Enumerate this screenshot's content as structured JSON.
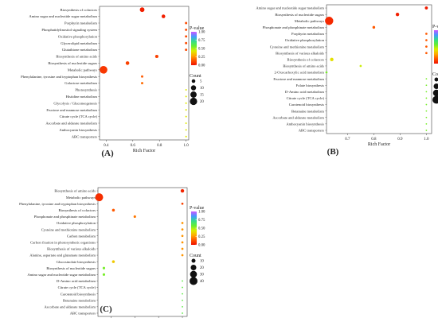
{
  "legend": {
    "pvalue_title": "P-value",
    "count_title": "Count",
    "colors": [
      "#cc55ff",
      "#4499ff",
      "#33dd88",
      "#66ee33",
      "#ddee00",
      "#ffaa00",
      "#ff5500",
      "#ee1100"
    ]
  },
  "chart_data": [
    {
      "type": "scatter",
      "panel_label": "(A)",
      "xlabel": "Rich Factor",
      "ylabel": "",
      "xlim": [
        0.35,
        1.02
      ],
      "xticks": [
        0.4,
        0.6,
        0.8,
        1.0
      ],
      "xtick_labels": [
        "0.4",
        "0.6",
        "0.8",
        "1.0"
      ],
      "pvalue_ticks": [
        1.0,
        0.75,
        0.5,
        0.25,
        0.0
      ],
      "pvalue_tick_labels": [
        "1.00",
        "0.75",
        "0.50",
        "0.25",
        "0.00"
      ],
      "count_legend": [
        5,
        10,
        15,
        20
      ],
      "grid": false,
      "categories": [
        "Biosynthesis of cofactors",
        "Amino sugar and nucleotide sugar metabolism",
        "Porphyrin metabolism",
        "Phosphatidylinositol signaling system",
        "Oxidative phosphorylation",
        "Glycerolipid metabolism",
        "Glutathione metabolism",
        "Biosynthesis of amino acids",
        "Biosynthesis of nucleotide sugars",
        "Metabolic pathways",
        "Phenylalanine, tyrosine and tryptophan biosynthesis",
        "Galactose metabolism",
        "Photosynthesis",
        "Histidine metabolism",
        "Glycolysis / Gluconeogenesis",
        "Fructose and mannose metabolism",
        "Citrate cycle (TCA cycle)",
        "Ascorbate and aldarate metabolism",
        "Anthocyanin biosynthesis",
        "ABC transporters"
      ],
      "rich_factor": [
        0.67,
        0.83,
        1.0,
        1.0,
        1.0,
        1.0,
        1.0,
        0.78,
        0.56,
        0.38,
        0.67,
        0.67,
        1.0,
        1.0,
        1.0,
        1.0,
        1.0,
        1.0,
        1.0,
        1.0
      ],
      "pvalue": [
        0.03,
        0.03,
        0.12,
        0.12,
        0.12,
        0.12,
        0.12,
        0.1,
        0.1,
        0.08,
        0.15,
        0.18,
        0.42,
        0.42,
        0.42,
        0.42,
        0.42,
        0.42,
        0.42,
        0.42
      ],
      "count": [
        8,
        5,
        2,
        2,
        2,
        2,
        2,
        4,
        5,
        22,
        2,
        2,
        1,
        1,
        1,
        1,
        1,
        1,
        1,
        1
      ]
    },
    {
      "type": "scatter",
      "panel_label": "(B)",
      "xlabel": "Rich Factor",
      "ylabel": "",
      "xlim": [
        0.62,
        1.02
      ],
      "xticks": [
        0.7,
        0.8,
        0.9,
        1.0
      ],
      "xtick_labels": [
        "0.7",
        "0.8",
        "0.9",
        "1.0"
      ],
      "pvalue_ticks": [
        1.0,
        0.75,
        0.5,
        0.25,
        0.0
      ],
      "pvalue_tick_labels": [
        "1.00",
        "0.75",
        "0.50",
        "0.25",
        "0.00"
      ],
      "count_legend": [
        10,
        20,
        30,
        40
      ],
      "grid": false,
      "categories": [
        "Amino sugar and nucleotide sugar metabolism",
        "Biosynthesis of nucleotide sugars",
        "Metabolic pathways",
        "Phosphonate and phosphinate metabolism",
        "Porphyrin metabolism",
        "Oxidative phosphorylation",
        "Cysteine and methionine metabolism",
        "Biosynthesis of various alkaloids",
        "Biosynthesis of cofactors",
        "Biosynthesis of amino acids",
        "2-Oxocarboxylic acid metabolism",
        "Fructose and mannose metabolism",
        "Folate biosynthesis",
        "D-Amino acid metabolism",
        "Citrate cycle (TCA cycle)",
        "Carotenoid biosynthesis",
        "Betanaine metabolism",
        "Ascorbate and aldarate metabolism",
        "Anthocyanin biosynthesis",
        "ABC transporters"
      ],
      "rich_factor": [
        1.0,
        0.89,
        0.63,
        0.8,
        1.0,
        1.0,
        1.0,
        1.0,
        0.64,
        0.75,
        0.62,
        1.0,
        1.0,
        1.0,
        1.0,
        1.0,
        1.0,
        1.0,
        1.0,
        1.0
      ],
      "pvalue": [
        0.02,
        0.03,
        0.05,
        0.15,
        0.15,
        0.15,
        0.15,
        0.15,
        0.4,
        0.45,
        0.55,
        0.55,
        0.55,
        0.55,
        0.55,
        0.55,
        0.55,
        0.55,
        0.55,
        0.55
      ],
      "count": [
        6,
        8,
        45,
        5,
        3,
        3,
        3,
        3,
        8,
        3,
        3,
        1,
        1,
        1,
        1,
        1,
        1,
        1,
        1,
        1
      ]
    },
    {
      "type": "scatter",
      "panel_label": "(C)",
      "xlabel": "Rich Factor",
      "ylabel": "",
      "xlim": [
        0.645,
        1.02
      ],
      "xticks": [
        0.7,
        0.8,
        0.9,
        1.0
      ],
      "xtick_labels": [
        "0.7",
        "0.8",
        "0.9",
        "1.0"
      ],
      "pvalue_ticks": [
        1.0,
        0.75,
        0.5,
        0.25,
        0.0
      ],
      "pvalue_tick_labels": [
        "1.00",
        "0.75",
        "0.50",
        "0.25",
        "0.00"
      ],
      "count_legend": [
        10,
        20,
        30,
        40
      ],
      "grid": false,
      "categories": [
        "Biosynthesis of amino acids",
        "Metabolic pathways",
        "Phenylalanine, tyrosine and tryptophan biosynthesis",
        "Biosynthesis of cofactors",
        "Phosphonate and phosphinate metabolism",
        "Oxidative phosphorylation",
        "Cysteine and methionine metabolism",
        "Carbon metabolism",
        "Carbon fixation in photosynthetic organisms",
        "Biosynthesis of various alkaloids",
        "Alanine, aspartate and glutamate metabolism",
        "Glucosinolate biosynthesis",
        "Biosynthesis of nucleotide sugars",
        "Amino sugar and nucleotide sugar metabolism",
        "D-Amino acid metabolism",
        "Citrate cycle (TCA cycle)",
        "Carotenoid biosynthesis",
        "Betanaine metabolism",
        "Ascorbate and aldarate metabolism",
        "ABC transporters"
      ],
      "rich_factor": [
        1.0,
        0.65,
        1.0,
        0.71,
        0.8,
        1.0,
        1.0,
        1.0,
        1.0,
        1.0,
        1.0,
        0.71,
        0.67,
        0.67,
        1.0,
        1.0,
        1.0,
        1.0,
        1.0,
        1.0
      ],
      "pvalue": [
        0.04,
        0.06,
        0.1,
        0.15,
        0.2,
        0.25,
        0.25,
        0.25,
        0.25,
        0.25,
        0.25,
        0.35,
        0.55,
        0.55,
        0.6,
        0.6,
        0.6,
        0.6,
        0.6,
        0.6
      ],
      "count": [
        8,
        40,
        3,
        5,
        4,
        3,
        3,
        3,
        3,
        3,
        3,
        5,
        4,
        4,
        1,
        1,
        1,
        1,
        1,
        1
      ]
    }
  ]
}
